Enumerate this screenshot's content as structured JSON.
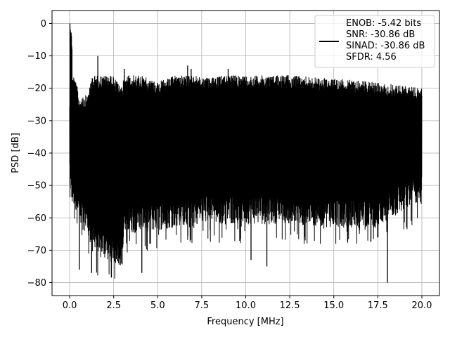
{
  "chart_data": {
    "type": "line",
    "title": "",
    "xlabel": "Frequency [MHz]",
    "ylabel": "PSD [dB]",
    "xlim": [
      -1.0,
      21.0
    ],
    "ylim": [
      -84.0,
      4.0
    ],
    "xticks": [
      0.0,
      2.5,
      5.0,
      7.5,
      10.0,
      12.5,
      15.0,
      17.5,
      20.0
    ],
    "xtick_labels": [
      "0.0",
      "2.5",
      "5.0",
      "7.5",
      "10.0",
      "12.5",
      "15.0",
      "17.5",
      "20.0"
    ],
    "yticks": [
      0,
      -10,
      -20,
      -30,
      -40,
      -50,
      -60,
      -70,
      -80
    ],
    "ytick_labels": [
      "0",
      "−10",
      "−20",
      "−30",
      "−40",
      "−50",
      "−60",
      "−70",
      "−80"
    ],
    "grid": true,
    "legend": {
      "placement": "top-right",
      "entries": [
        "ENOB: -5.42 bits",
        "SNR: -30.86 dB",
        "SINAD: -30.86 dB",
        "SFDR: 4.56"
      ]
    },
    "series": [
      {
        "color": "#000000",
        "x_range": [
          0.0,
          20.0
        ],
        "description_points": {
          "x": [
            0.0,
            0.05,
            0.5,
            1.0,
            1.6,
            3.0,
            3.1,
            5.0,
            6.0,
            6.8,
            7.5,
            10.0,
            12.5,
            15.0,
            17.5,
            20.0
          ],
          "y_upper": [
            -23,
            0,
            -23,
            -22,
            -10,
            -20,
            -14,
            -18,
            -16,
            -13,
            -17,
            -15,
            -16,
            -17,
            -18,
            -20
          ],
          "y_lower": [
            -45,
            -55,
            -60,
            -66,
            -72,
            -75,
            -65,
            -64,
            -63,
            -62,
            -62,
            -62,
            -62,
            -63,
            -63,
            -55
          ]
        },
        "notable_dips": [
          {
            "x": 0.55,
            "y": -76
          },
          {
            "x": 1.25,
            "y": -77
          },
          {
            "x": 4.1,
            "y": -77
          },
          {
            "x": 10.3,
            "y": -73
          },
          {
            "x": 11.2,
            "y": -75
          },
          {
            "x": 18.05,
            "y": -80
          }
        ]
      }
    ]
  }
}
